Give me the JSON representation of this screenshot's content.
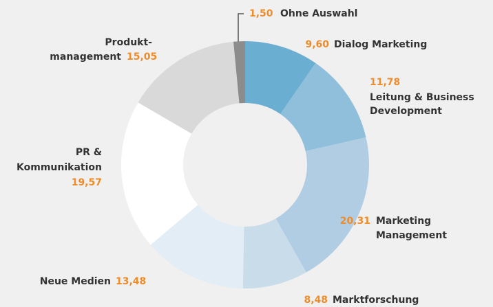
{
  "chart_data": {
    "type": "donut",
    "categories": [
      "Dialog Marketing",
      "Leitung & Business\nDevelopment",
      "Marketing\nManagement",
      "Marktforschung",
      "Neue Medien",
      "PR &\nKommunikation",
      "Produkt-\nmanagement",
      "Ohne Auswahl"
    ],
    "values": [
      9.6,
      11.78,
      20.31,
      8.48,
      13.48,
      19.57,
      15.05,
      1.5
    ],
    "value_labels": [
      "9,60",
      "11,78",
      "20,31",
      "8,48",
      "13,48",
      "19,57",
      "15,05",
      "1,50"
    ],
    "colors": [
      "#6aaed1",
      "#8fbfda",
      "#b0cde4",
      "#c9dcea",
      "#e3edf5",
      "#ffffff",
      "#d9d9d9",
      "#8c8c8c"
    ]
  }
}
